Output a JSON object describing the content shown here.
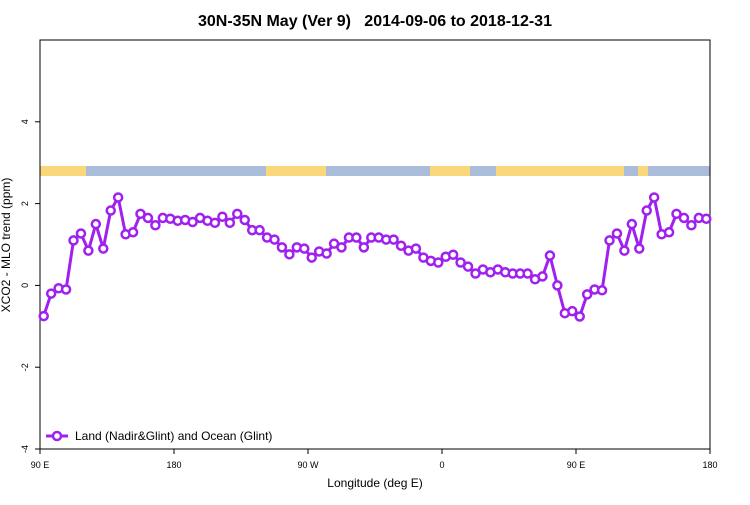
{
  "chart_data": {
    "type": "line",
    "title": "30N-35N May (Ver 9)   2014-09-06 to 2018-12-31",
    "x_label": "Longitude (deg E)",
    "y_label": "XCO2 - MLO trend (ppm)",
    "xlim": [
      90,
      540
    ],
    "xticks": [
      {
        "value": 90,
        "label": "90 E"
      },
      180,
      {
        "value": 270,
        "label": "90 W"
      },
      {
        "value": 360,
        "label": "0"
      },
      {
        "value": 450,
        "label": "90 E"
      },
      {
        "value": 540,
        "label": "180"
      }
    ],
    "ylim": [
      -4,
      6
    ],
    "yticks": [
      -4,
      -2,
      0,
      2,
      4
    ],
    "legend": "bottom-left",
    "x": [
      92.5,
      97.5,
      102.5,
      107.5,
      112.5,
      117.5,
      122.5,
      127.5,
      132.5,
      137.5,
      142.5,
      147.5,
      152.5,
      157.5,
      162.5,
      167.5,
      172.5,
      177.5,
      182.5,
      187.5,
      192.5,
      197.5,
      202.5,
      207.5,
      212.5,
      217.5,
      222.5,
      227.5,
      232.5,
      237.5,
      242.5,
      247.5,
      252.5,
      257.5,
      262.5,
      267.5,
      272.5,
      277.5,
      282.5,
      287.5,
      292.5,
      297.5,
      302.5,
      307.5,
      312.5,
      317.5,
      322.5,
      327.5,
      332.5,
      337.5,
      342.5,
      347.5,
      352.5,
      357.5,
      362.5,
      367.5,
      372.5,
      377.5,
      382.5,
      387.5,
      392.5,
      397.5,
      402.5,
      407.5,
      412.5,
      417.5,
      422.5,
      427.5,
      432.5,
      437.5,
      442.5,
      447.5,
      452.5,
      457.5,
      462.5,
      467.5,
      472.5,
      477.5,
      482.5,
      487.5,
      492.5,
      497.5,
      502.5,
      507.5,
      512.5,
      517.5,
      522.5,
      527.5,
      532.5,
      537.5
    ],
    "series": [
      {
        "name": "Land (Nadir&Glint) and Ocean (Glint)",
        "color": "#a020f0",
        "values": [
          -0.75,
          -0.2,
          -0.07,
          -0.1,
          1.1,
          1.27,
          0.85,
          1.5,
          0.9,
          1.83,
          2.15,
          1.25,
          1.3,
          1.75,
          1.65,
          1.47,
          1.65,
          1.63,
          1.58,
          1.6,
          1.55,
          1.65,
          1.58,
          1.53,
          1.68,
          1.53,
          1.75,
          1.6,
          1.35,
          1.35,
          1.17,
          1.12,
          0.93,
          0.76,
          0.93,
          0.9,
          0.68,
          0.83,
          0.78,
          1.02,
          0.93,
          1.17,
          1.17,
          0.93,
          1.17,
          1.17,
          1.12,
          1.12,
          0.97,
          0.85,
          0.9,
          0.68,
          0.6,
          0.56,
          0.7,
          0.75,
          0.56,
          0.46,
          0.29,
          0.39,
          0.32,
          0.39,
          0.32,
          0.29,
          0.29,
          0.29,
          0.15,
          0.22,
          0.73,
          0.0,
          -0.68,
          -0.63,
          -0.76,
          -0.22,
          -0.1,
          -0.12,
          1.1,
          1.27,
          0.85,
          1.5,
          0.9,
          1.83,
          2.15,
          1.25,
          1.3,
          1.75,
          1.65,
          1.47,
          1.65,
          1.63
        ]
      }
    ]
  }
}
